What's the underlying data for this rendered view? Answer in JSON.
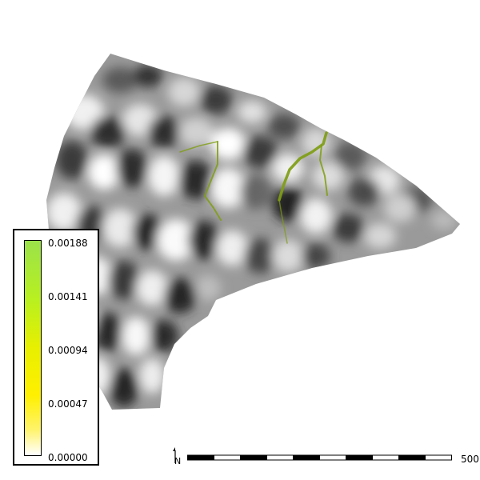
{
  "legend": {
    "values": [
      "0.00188",
      "0.00141",
      "0.00094",
      "0.00047",
      "0.00000"
    ],
    "colors": {
      "low": "#ffffff",
      "mid": "#fff000",
      "high": "#9be24a"
    }
  },
  "scalebar": {
    "label": "500",
    "segments": 10
  },
  "north_arrow": {
    "label": "N",
    "icon": "north-arrow-icon"
  },
  "map": {
    "basemap": "grayscale-hillshade",
    "stream_color": "#7f9d13"
  }
}
